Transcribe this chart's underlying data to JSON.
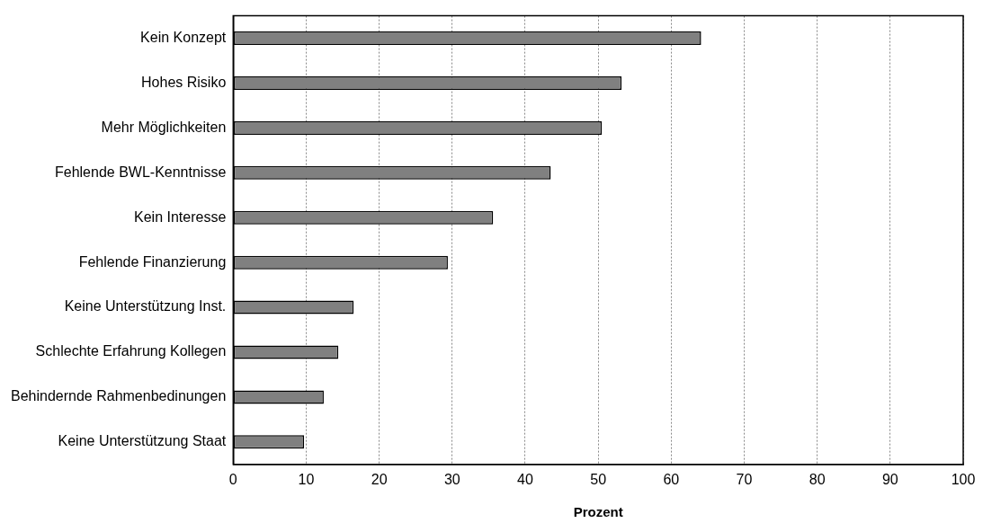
{
  "chart_data": {
    "type": "bar",
    "orientation": "horizontal",
    "xlabel": "Prozent",
    "categories": [
      "Kein Konzept",
      "Hohes Risiko",
      "Mehr Möglichkeiten",
      "Fehlende BWL-Kenntnisse",
      "Kein Interesse",
      "Fehlende Finanzierung",
      "Keine Unterstützung Inst.",
      "Schlechte Erfahrung Kollegen",
      "Behindernde Rahmenbedinungen",
      "Keine Unterstützung Staat"
    ],
    "values": [
      64.1,
      53.2,
      50.5,
      43.5,
      35.6,
      29.4,
      16.5,
      14.4,
      12.4,
      9.7
    ],
    "color": "#808080",
    "xlim": [
      0,
      100
    ],
    "xticks": [
      0,
      10,
      20,
      30,
      40,
      50,
      60,
      70,
      80,
      90,
      100
    ],
    "grid": "x",
    "legend": false
  }
}
